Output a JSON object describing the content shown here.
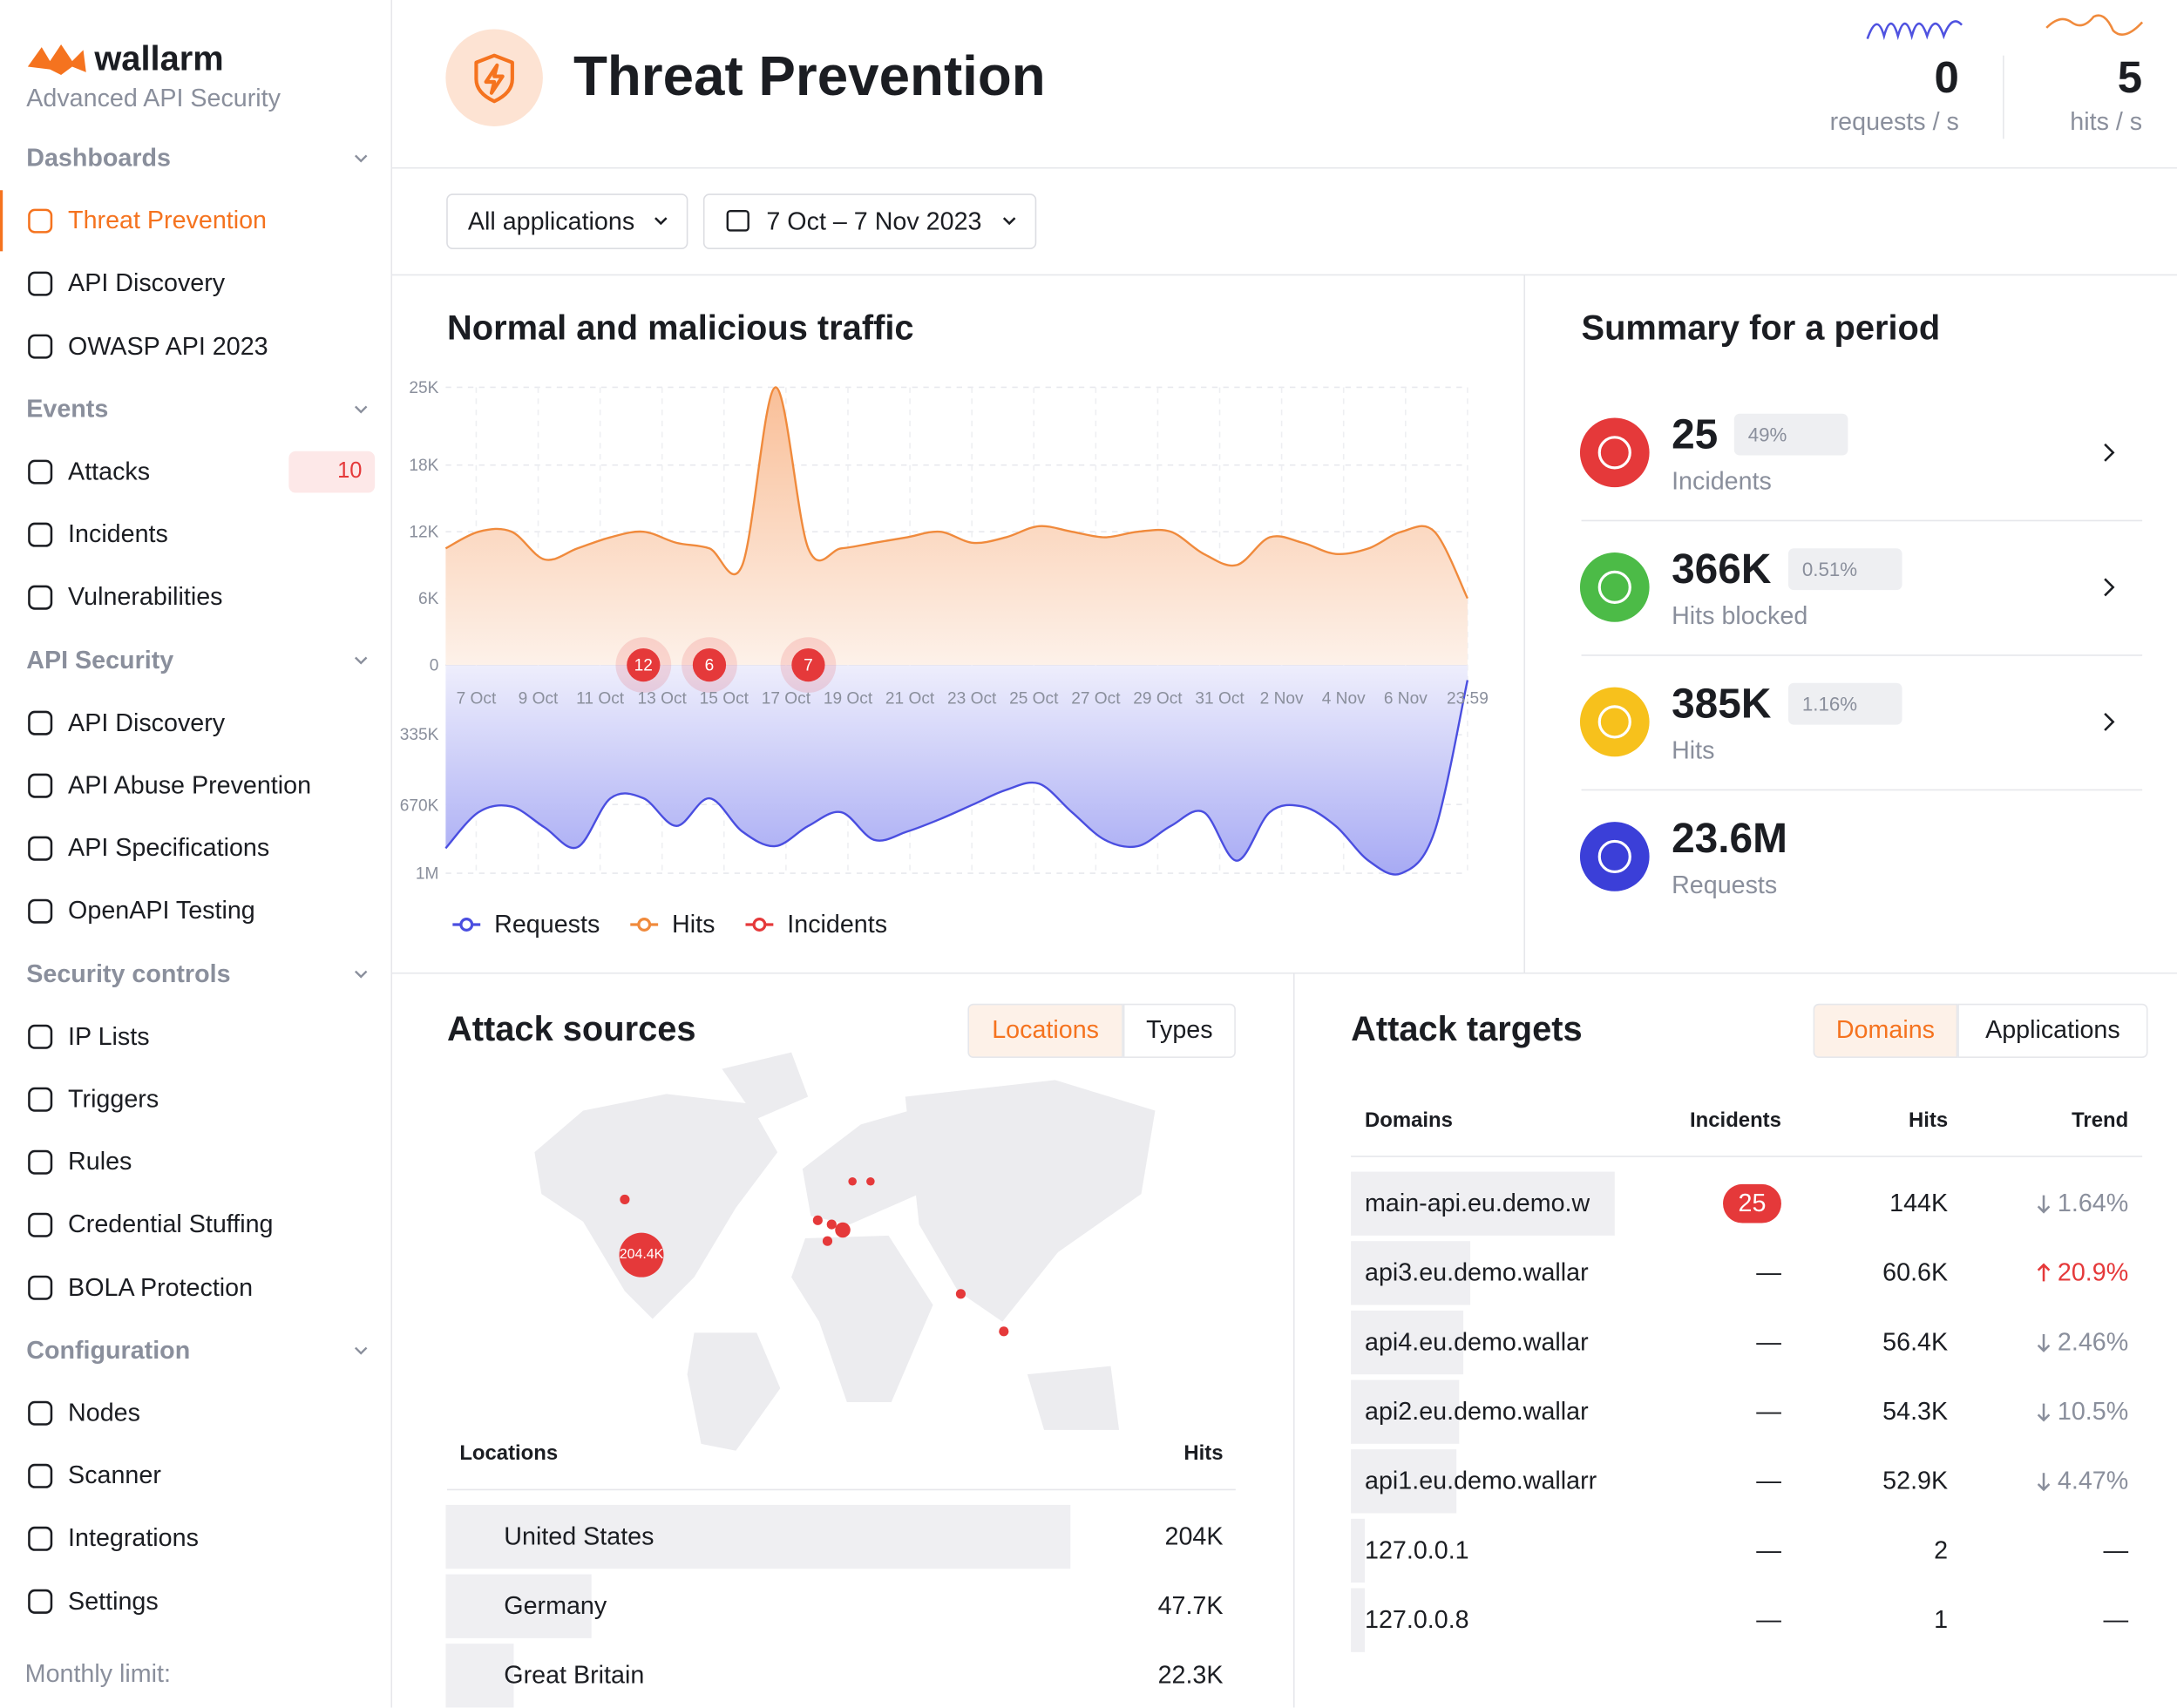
{
  "sidebar": {
    "brand": "wallarm",
    "tagline": "Advanced API Security",
    "sections": [
      {
        "title": "Dashboards",
        "items": [
          {
            "label": "Threat Prevention",
            "active": true
          },
          {
            "label": "API Discovery"
          },
          {
            "label": "OWASP API 2023"
          }
        ]
      },
      {
        "title": "Events",
        "items": [
          {
            "label": "Attacks",
            "badge": 10
          },
          {
            "label": "Incidents"
          },
          {
            "label": "Vulnerabilities"
          }
        ]
      },
      {
        "title": "API Security",
        "items": [
          {
            "label": "API Discovery"
          },
          {
            "label": "API Abuse Prevention"
          },
          {
            "label": "API Specifications"
          },
          {
            "label": "OpenAPI Testing"
          }
        ]
      },
      {
        "title": "Security controls",
        "items": [
          {
            "label": "IP Lists"
          },
          {
            "label": "Triggers"
          },
          {
            "label": "Rules"
          },
          {
            "label": "Credential Stuffing"
          },
          {
            "label": "BOLA Protection"
          }
        ]
      },
      {
        "title": "Configuration",
        "items": [
          {
            "label": "Nodes"
          },
          {
            "label": "Scanner"
          },
          {
            "label": "Integrations"
          },
          {
            "label": "Settings"
          }
        ]
      }
    ],
    "footer": "Monthly limit:"
  },
  "header": {
    "title": "Threat Prevention",
    "stats": [
      {
        "value": 0,
        "label": "requests / s",
        "color": "#4f52e0"
      },
      {
        "value": 5,
        "label": "hits / s",
        "color": "#f08a3c"
      }
    ]
  },
  "filters": {
    "applications": "All applications",
    "date_range": "7 Oct – 7 Nov 2023"
  },
  "traffic": {
    "title": "Normal and malicious traffic",
    "x_labels": [
      "7 Oct",
      "9 Oct",
      "11 Oct",
      "13 Oct",
      "15 Oct",
      "17 Oct",
      "19 Oct",
      "21 Oct",
      "23 Oct",
      "25 Oct",
      "27 Oct",
      "29 Oct",
      "31 Oct",
      "2 Nov",
      "4 Nov",
      "6 Nov",
      "23:59"
    ],
    "hits_ylim": [
      0,
      25000
    ],
    "hits_ticks": [
      {
        "value": 25000,
        "label": "25K"
      },
      {
        "value": 18000,
        "label": "18K"
      },
      {
        "value": 12000,
        "label": "12K"
      },
      {
        "value": 6000,
        "label": "6K"
      },
      0
    ],
    "requests_ylim": [
      0,
      1000000
    ],
    "requests_ticks": [
      {
        "value": 335000,
        "label": "335K"
      },
      {
        "value": 670000,
        "label": "670K"
      },
      {
        "value": 1000000,
        "label": "1M"
      }
    ],
    "series": [
      {
        "name": "Requests",
        "color": "#4a4ee0",
        "values": [
          880000,
          707000,
          680000,
          780000,
          875000,
          640000,
          640000,
          773000,
          640000,
          800000,
          870000,
          773000,
          707000,
          840000,
          800000,
          740000,
          670000,
          600000,
          570000,
          707000,
          840000,
          870000,
          773000,
          707000,
          940000,
          707000,
          680000,
          773000,
          940000,
          1000000,
          800000,
          73000
        ]
      },
      {
        "name": "Hits",
        "color": "#f08a3c",
        "values": [
          10500,
          12000,
          12000,
          9500,
          10500,
          11500,
          12000,
          11000,
          10500,
          9000,
          25000,
          10500,
          10500,
          11000,
          11500,
          12000,
          11000,
          11500,
          12500,
          12000,
          11500,
          12000,
          12000,
          10000,
          9000,
          11500,
          11000,
          10000,
          10500,
          12000,
          12000,
          6000
        ]
      },
      {
        "name": "Incidents",
        "color": "#e5393a",
        "values": [
          null,
          null,
          null,
          null,
          null,
          null,
          12,
          null,
          6,
          null,
          null,
          7,
          null,
          null,
          null,
          null,
          null,
          null,
          null,
          null,
          null,
          null,
          null,
          null,
          null,
          null,
          null,
          null,
          null,
          null,
          null,
          null
        ]
      }
    ]
  },
  "summary": {
    "title": "Summary for a period",
    "items": [
      {
        "value": 25,
        "change": "49%",
        "label": "Incidents",
        "color": "#e5393a"
      },
      {
        "value": "366K",
        "change": "0.51%",
        "label": "Hits blocked",
        "color": "#4cbb47"
      },
      {
        "value": "385K",
        "change": "1.16%",
        "label": "Hits",
        "color": "#f7c11c"
      },
      {
        "value": "23.6M",
        "label": "Requests",
        "color": "#3b3fd8"
      }
    ]
  },
  "sources": {
    "title": "Attack sources",
    "tabs": [
      "Locations",
      "Types"
    ],
    "map_bubble": "204.4K",
    "columns": [
      "Locations",
      "Hits"
    ],
    "rows": [
      {
        "name": "United States",
        "hits": 204000,
        "hits_label": "204K"
      },
      {
        "name": "Germany",
        "hits": 47700,
        "hits_label": "47.7K"
      },
      {
        "name": "Great Britain",
        "hits": 22300,
        "hits_label": "22.3K"
      }
    ]
  },
  "targets": {
    "title": "Attack targets",
    "tabs": [
      "Domains",
      "Applications"
    ],
    "columns": [
      "Domains",
      "Incidents",
      "Hits",
      "Trend"
    ],
    "rows": [
      {
        "domain": "main-api.eu.demo.w",
        "incidents": 25,
        "hits": 144000,
        "hits_label": "144K",
        "trend": "1.64%",
        "direction": "down"
      },
      {
        "domain": "api3.eu.demo.wallar",
        "incidents": "—",
        "hits": 60600,
        "hits_label": "60.6K",
        "trend": "20.9%",
        "direction": "up"
      },
      {
        "domain": "api4.eu.demo.wallar",
        "incidents": "—",
        "hits": 56400,
        "hits_label": "56.4K",
        "trend": "2.46%",
        "direction": "down"
      },
      {
        "domain": "api2.eu.demo.wallar",
        "incidents": "—",
        "hits": 54300,
        "hits_label": "54.3K",
        "trend": "10.5%",
        "direction": "down"
      },
      {
        "domain": "api1.eu.demo.wallarr",
        "incidents": "—",
        "hits": 52900,
        "hits_label": "52.9K",
        "trend": "4.47%",
        "direction": "down"
      },
      {
        "domain": "127.0.0.1",
        "incidents": "—",
        "hits": 2,
        "hits_label": "2",
        "trend": "—"
      },
      {
        "domain": "127.0.0.8",
        "incidents": "—",
        "hits": 1,
        "hits_label": "1",
        "trend": "—"
      }
    ]
  }
}
